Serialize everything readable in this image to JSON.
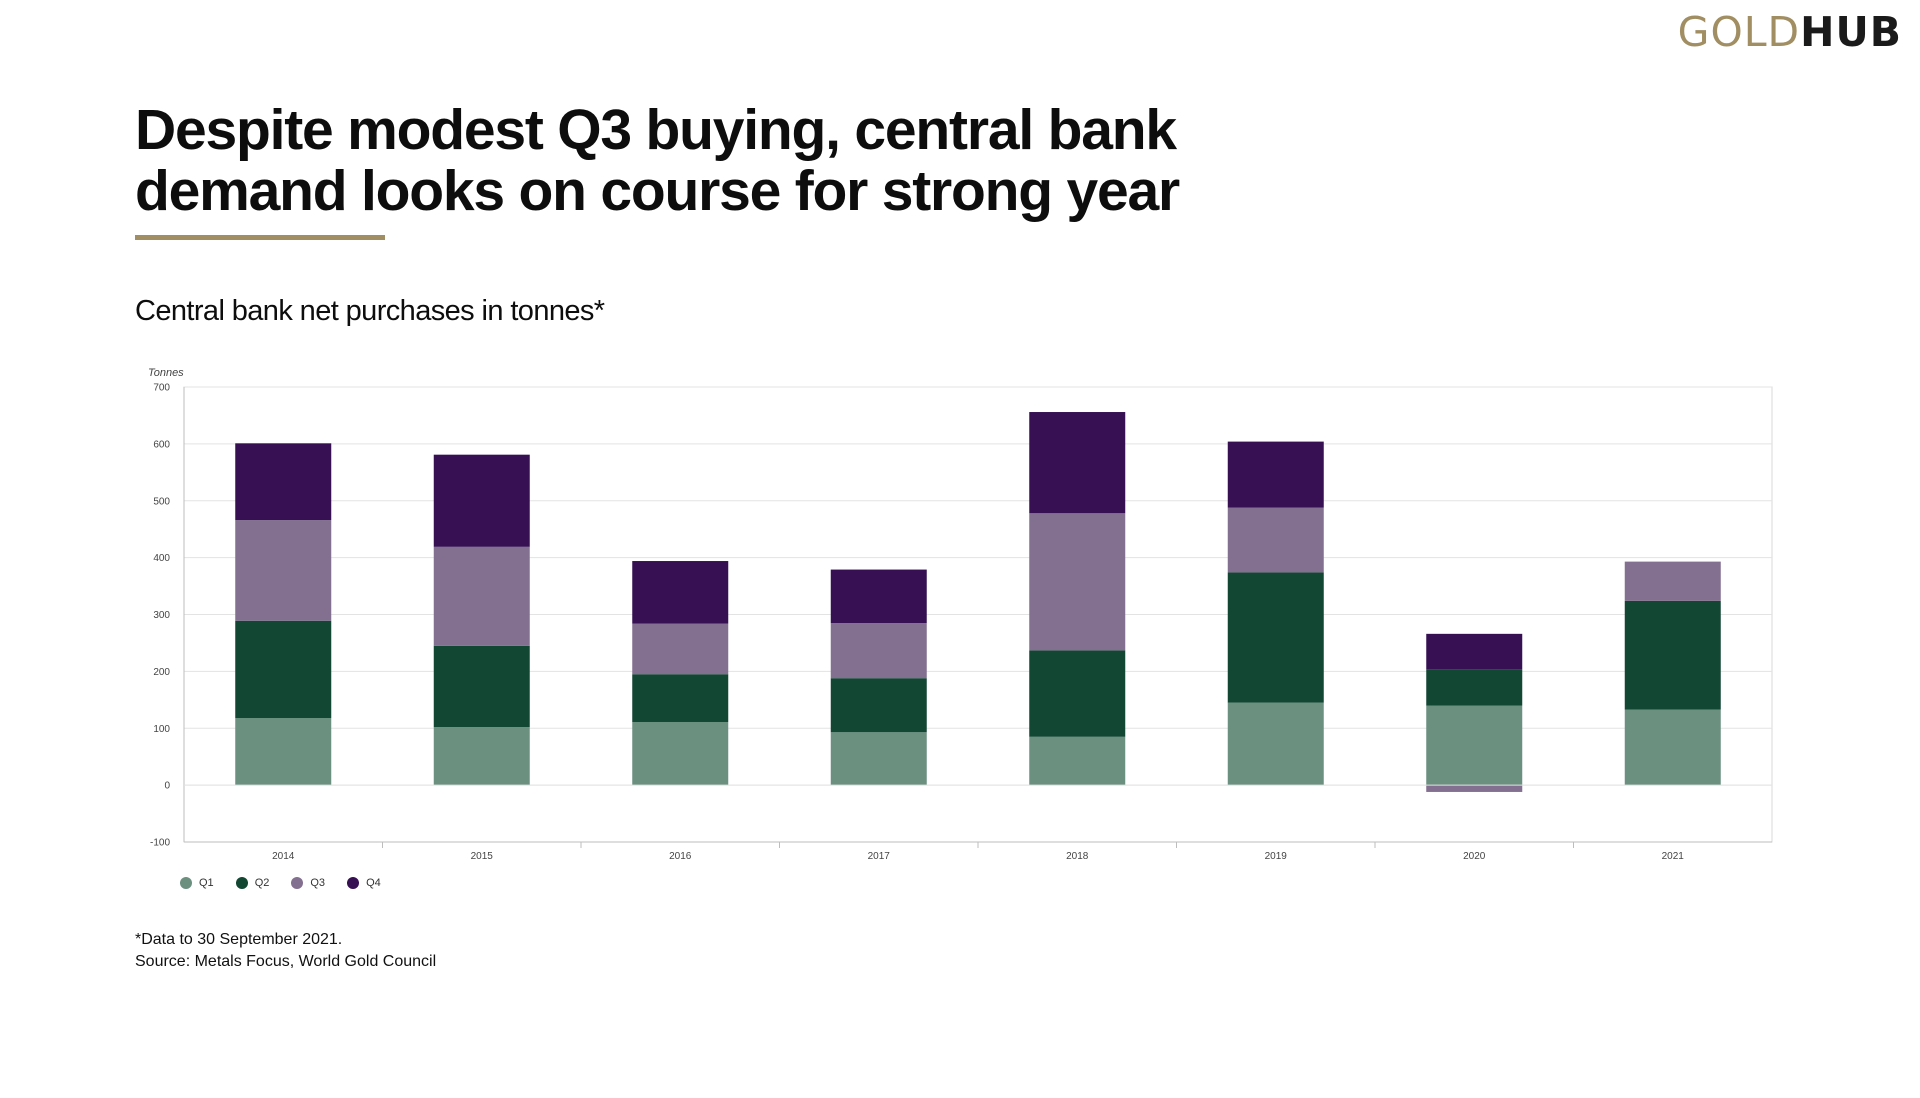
{
  "logo": {
    "gold": "GOLD",
    "hub": "HUB"
  },
  "headline": {
    "line1": "Despite modest Q3 buying, central bank",
    "line2": "demand looks on course for strong year"
  },
  "subtitle": "Central bank net purchases in tonnes*",
  "footnote": {
    "line1": "*Data to 30 September 2021.",
    "line2": "Source: Metals Focus, World Gold Council"
  },
  "colors": {
    "accent": "#a18e62",
    "Q1": "#6b9080",
    "Q2": "#124734",
    "Q3": "#836f8f",
    "Q4": "#361052"
  },
  "chart_data": {
    "type": "bar",
    "stacked": true,
    "ylabel": "Tonnes",
    "ylim": [
      -100,
      700
    ],
    "yticks": [
      -100,
      0,
      100,
      200,
      300,
      400,
      500,
      600,
      700
    ],
    "grid": true,
    "legend_position": "bottom-left",
    "categories": [
      "2014",
      "2015",
      "2016",
      "2017",
      "2018",
      "2019",
      "2020",
      "2021"
    ],
    "series": [
      {
        "name": "Q1",
        "values": [
          118,
          102,
          111,
          93,
          85,
          145,
          140,
          133
        ]
      },
      {
        "name": "Q2",
        "values": [
          171,
          143,
          84,
          95,
          152,
          229,
          64,
          191
        ]
      },
      {
        "name": "Q3",
        "values": [
          177,
          174,
          89,
          97,
          241,
          114,
          -12,
          69
        ]
      },
      {
        "name": "Q4",
        "values": [
          135,
          162,
          110,
          94,
          178,
          116,
          62,
          0
        ]
      }
    ]
  }
}
